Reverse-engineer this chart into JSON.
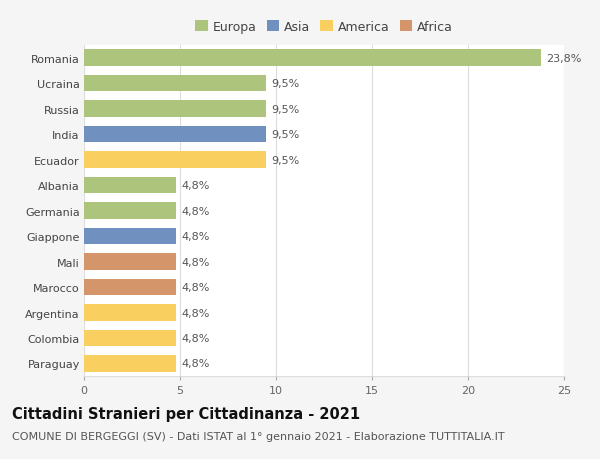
{
  "countries": [
    "Romania",
    "Ucraina",
    "Russia",
    "India",
    "Ecuador",
    "Albania",
    "Germania",
    "Giappone",
    "Mali",
    "Marocco",
    "Argentina",
    "Colombia",
    "Paraguay"
  ],
  "values": [
    23.8,
    9.5,
    9.5,
    9.5,
    9.5,
    4.8,
    4.8,
    4.8,
    4.8,
    4.8,
    4.8,
    4.8,
    4.8
  ],
  "labels": [
    "23,8%",
    "9,5%",
    "9,5%",
    "9,5%",
    "9,5%",
    "4,8%",
    "4,8%",
    "4,8%",
    "4,8%",
    "4,8%",
    "4,8%",
    "4,8%",
    "4,8%"
  ],
  "colors": [
    "#adc47d",
    "#adc47d",
    "#adc47d",
    "#7090c0",
    "#f9d060",
    "#adc47d",
    "#adc47d",
    "#7090c0",
    "#d4956a",
    "#d4956a",
    "#f9d060",
    "#f9d060",
    "#f9d060"
  ],
  "legend_labels": [
    "Europa",
    "Asia",
    "America",
    "Africa"
  ],
  "legend_colors": [
    "#adc47d",
    "#7090c0",
    "#f9d060",
    "#d4956a"
  ],
  "xlim": [
    0,
    25
  ],
  "xticks": [
    0,
    5,
    10,
    15,
    20,
    25
  ],
  "title": "Cittadini Stranieri per Cittadinanza - 2021",
  "subtitle": "COMUNE DI BERGEGGI (SV) - Dati ISTAT al 1° gennaio 2021 - Elaborazione TUTTITALIA.IT",
  "bg_color": "#f5f5f5",
  "plot_bg_color": "#ffffff",
  "grid_color": "#dddddd",
  "title_fontsize": 10.5,
  "subtitle_fontsize": 8,
  "label_fontsize": 8,
  "tick_fontsize": 8,
  "legend_fontsize": 9
}
